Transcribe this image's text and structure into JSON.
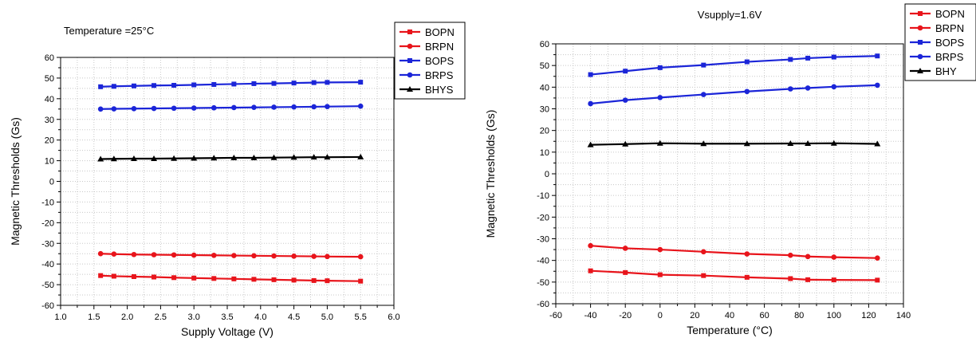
{
  "colors": {
    "red": "#e8141b",
    "blue": "#1b25d8",
    "black": "#000000",
    "grid": "#c8c8c8"
  },
  "chart_data": [
    {
      "type": "line",
      "title": "Temperature =25°C",
      "xlabel": "Supply Voltage (V)",
      "ylabel": "Magnetic Thresholds (Gs)",
      "xlim": [
        1.0,
        6.0
      ],
      "ylim": [
        -60,
        60
      ],
      "xticks": [
        "1.0",
        "1.5",
        "2.0",
        "2.5",
        "3.0",
        "3.5",
        "4.0",
        "4.5",
        "5.0",
        "5.5",
        "6.0"
      ],
      "yticks": [
        "-60",
        "-50",
        "-40",
        "-30",
        "-20",
        "-10",
        "0",
        "10",
        "20",
        "30",
        "40",
        "50",
        "60"
      ],
      "grid": true,
      "legend_position": "top-right",
      "x": [
        1.6,
        1.8,
        2.1,
        2.4,
        2.7,
        3.0,
        3.3,
        3.6,
        3.9,
        4.2,
        4.5,
        4.8,
        5.0,
        5.5
      ],
      "series": [
        {
          "name": "BOPN",
          "color": "red",
          "marker": "square",
          "values": [
            -45.6,
            -45.9,
            -46.1,
            -46.3,
            -46.6,
            -46.8,
            -47.0,
            -47.2,
            -47.4,
            -47.6,
            -47.8,
            -48.0,
            -48.1,
            -48.3
          ]
        },
        {
          "name": "BRPN",
          "color": "red",
          "marker": "circle",
          "values": [
            -35.0,
            -35.2,
            -35.4,
            -35.5,
            -35.6,
            -35.7,
            -35.8,
            -35.9,
            -36.0,
            -36.1,
            -36.2,
            -36.3,
            -36.4,
            -36.5
          ]
        },
        {
          "name": "BOPS",
          "color": "blue",
          "marker": "square",
          "values": [
            45.8,
            46.0,
            46.2,
            46.4,
            46.5,
            46.7,
            46.9,
            47.1,
            47.3,
            47.4,
            47.6,
            47.8,
            47.9,
            48.0
          ]
        },
        {
          "name": "BRPS",
          "color": "blue",
          "marker": "circle",
          "values": [
            35.0,
            35.1,
            35.2,
            35.3,
            35.4,
            35.5,
            35.6,
            35.7,
            35.8,
            35.9,
            36.0,
            36.1,
            36.2,
            36.4
          ]
        },
        {
          "name": "BHYS",
          "color": "black",
          "marker": "triangle",
          "values": [
            10.8,
            10.9,
            11.0,
            11.0,
            11.1,
            11.2,
            11.3,
            11.4,
            11.4,
            11.5,
            11.6,
            11.7,
            11.7,
            11.8
          ]
        }
      ]
    },
    {
      "type": "line",
      "title": "Vsupply=1.6V",
      "xlabel": "Temperature (°C)",
      "ylabel": "Magnetic Thresholds (Gs)",
      "xlim": [
        -60,
        140
      ],
      "ylim": [
        -60,
        60
      ],
      "xticks": [
        "-60",
        "-40",
        "-20",
        "0",
        "20",
        "40",
        "60",
        "80",
        "100",
        "120",
        "140"
      ],
      "yticks": [
        "-60",
        "-50",
        "-40",
        "-30",
        "-20",
        "-10",
        "0",
        "10",
        "20",
        "30",
        "40",
        "50",
        "60"
      ],
      "grid": true,
      "legend_position": "top-right",
      "x": [
        -40,
        -20,
        0,
        25,
        50,
        75,
        85,
        100,
        125
      ],
      "series": [
        {
          "name": "BOPN",
          "color": "red",
          "marker": "square",
          "values": [
            -44.8,
            -45.6,
            -46.6,
            -47.0,
            -47.8,
            -48.4,
            -48.9,
            -49.0,
            -49.1
          ]
        },
        {
          "name": "BRPN",
          "color": "red",
          "marker": "circle",
          "values": [
            -33.2,
            -34.4,
            -35.0,
            -36.0,
            -37.0,
            -37.6,
            -38.2,
            -38.5,
            -38.9
          ]
        },
        {
          "name": "BOPS",
          "color": "blue",
          "marker": "square",
          "values": [
            45.8,
            47.4,
            49.0,
            50.2,
            51.7,
            52.8,
            53.4,
            53.9,
            54.4
          ]
        },
        {
          "name": "BRPS",
          "color": "blue",
          "marker": "circle",
          "values": [
            32.4,
            34.0,
            35.2,
            36.6,
            38.0,
            39.2,
            39.6,
            40.2,
            40.9
          ]
        },
        {
          "name": "BHY",
          "color": "black",
          "marker": "triangle",
          "values": [
            13.4,
            13.7,
            14.1,
            13.9,
            13.9,
            14.0,
            14.0,
            14.1,
            13.8
          ]
        }
      ]
    }
  ]
}
